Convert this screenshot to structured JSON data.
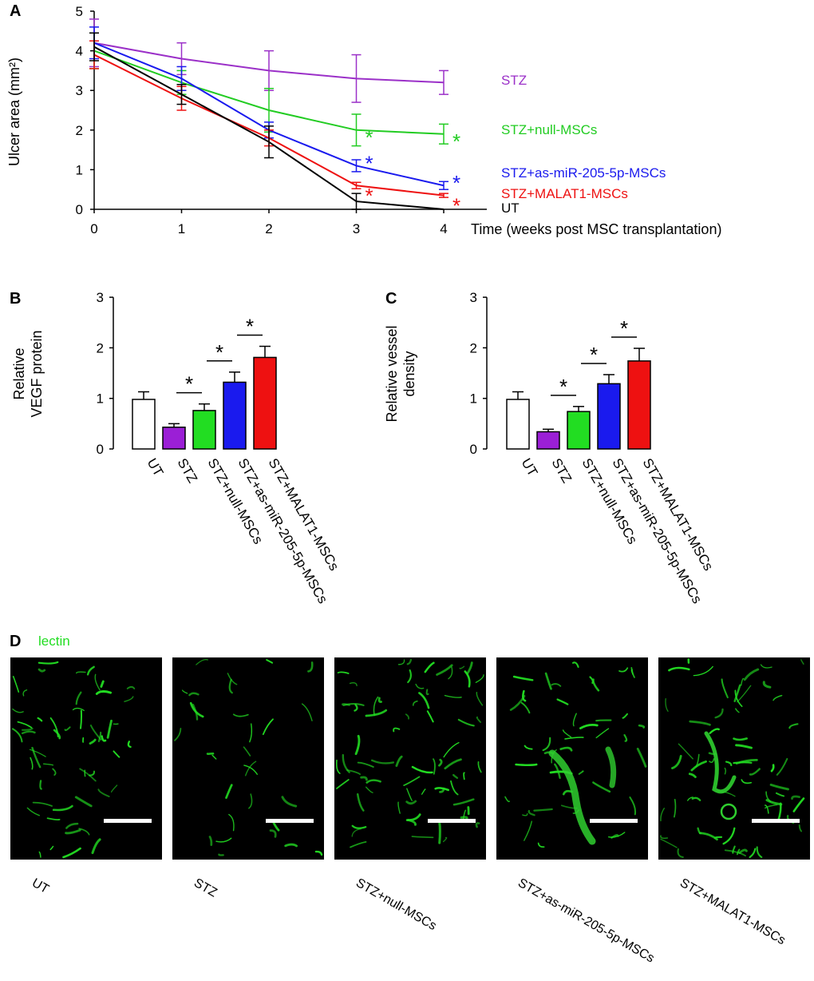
{
  "panel_a": {
    "letter": "A",
    "chart_data": {
      "type": "line",
      "title": "",
      "ylabel": "Ulcer area (mm²)",
      "xlabel": "Time (weeks post MSC transplantation)",
      "x": [
        0,
        1,
        2,
        3,
        4
      ],
      "x_ticks": [
        "0",
        "1",
        "2",
        "3",
        "4"
      ],
      "y_ticks": [
        "0",
        "1",
        "2",
        "3",
        "4",
        "5"
      ],
      "ylim": [
        0,
        5
      ],
      "xlim": [
        0,
        4
      ],
      "series": [
        {
          "name": "STZ",
          "color": "#9b30c8",
          "values": [
            4.2,
            3.8,
            3.5,
            3.3,
            3.2
          ],
          "errors": [
            0.6,
            0.4,
            0.5,
            0.6,
            0.3
          ],
          "significant": [
            false,
            false,
            false,
            false,
            false
          ]
        },
        {
          "name": "STZ+null-MSCs",
          "color": "#22cc22",
          "values": [
            4.0,
            3.2,
            2.5,
            2.0,
            1.9
          ],
          "errors": [
            0.45,
            0.3,
            0.55,
            0.4,
            0.25
          ],
          "significant": [
            false,
            false,
            false,
            true,
            true
          ]
        },
        {
          "name": "STZ+as-miR-205-5p-MSCs",
          "color": "#1a1aee",
          "values": [
            4.2,
            3.3,
            2.0,
            1.1,
            0.6
          ],
          "errors": [
            0.4,
            0.3,
            0.2,
            0.15,
            0.1
          ],
          "significant": [
            false,
            false,
            false,
            true,
            true
          ]
        },
        {
          "name": "STZ+MALAT1-MSCs",
          "color": "#ee1111",
          "values": [
            3.9,
            2.8,
            1.8,
            0.6,
            0.35
          ],
          "errors": [
            0.35,
            0.3,
            0.2,
            0.08,
            0.05
          ],
          "significant": [
            false,
            false,
            false,
            true,
            true
          ]
        },
        {
          "name": "UT",
          "color": "#000000",
          "values": [
            4.1,
            2.9,
            1.7,
            0.2,
            0.0
          ],
          "errors": [
            0.35,
            0.25,
            0.4,
            0.2,
            0.0
          ],
          "significant": [
            false,
            false,
            false,
            false,
            false
          ]
        }
      ]
    }
  },
  "panel_b": {
    "letter": "B",
    "chart_data": {
      "type": "bar",
      "ylabel_line1": "Relative",
      "ylabel_line2": "VEGF protein",
      "categories": [
        "UT",
        "STZ",
        "STZ+null-MSCs",
        "STZ+as-miR-205-5p-MSCs",
        "STZ+MALAT1-MSCs"
      ],
      "values": [
        0.98,
        0.43,
        0.76,
        1.32,
        1.81
      ],
      "errors": [
        0.15,
        0.07,
        0.13,
        0.2,
        0.22
      ],
      "colors": [
        "#ffffff",
        "#9b1fd6",
        "#22dd22",
        "#1a1aee",
        "#ee1111"
      ],
      "y_ticks": [
        "0",
        "1",
        "2",
        "3"
      ],
      "ylim": [
        0,
        3
      ],
      "significance": [
        {
          "between": [
            1,
            2
          ],
          "label": "*"
        },
        {
          "between": [
            2,
            3
          ],
          "label": "*"
        },
        {
          "between": [
            3,
            4
          ],
          "label": "*"
        }
      ]
    }
  },
  "panel_c": {
    "letter": "C",
    "chart_data": {
      "type": "bar",
      "ylabel_line1": "Relative vessel",
      "ylabel_line2": "density",
      "categories": [
        "UT",
        "STZ",
        "STZ+null-MSCs",
        "STZ+as-miR-205-5p-MSCs",
        "STZ+MALAT1-MSCs"
      ],
      "values": [
        0.98,
        0.34,
        0.74,
        1.29,
        1.74
      ],
      "errors": [
        0.15,
        0.05,
        0.1,
        0.18,
        0.25
      ],
      "colors": [
        "#ffffff",
        "#9b1fd6",
        "#22dd22",
        "#1a1aee",
        "#ee1111"
      ],
      "y_ticks": [
        "0",
        "1",
        "2",
        "3"
      ],
      "ylim": [
        0,
        3
      ],
      "significance": [
        {
          "between": [
            1,
            2
          ],
          "label": "*"
        },
        {
          "between": [
            2,
            3
          ],
          "label": "*"
        },
        {
          "between": [
            3,
            4
          ],
          "label": "*"
        }
      ]
    }
  },
  "panel_d": {
    "letter": "D",
    "stain_label": "lectin",
    "stain_color": "#22dd22",
    "images": [
      {
        "label": "UT"
      },
      {
        "label": "STZ"
      },
      {
        "label": "STZ+null-MSCs"
      },
      {
        "label": "STZ+as-miR-205-5p-MSCs"
      },
      {
        "label": "STZ+MALAT1-MSCs"
      }
    ]
  }
}
